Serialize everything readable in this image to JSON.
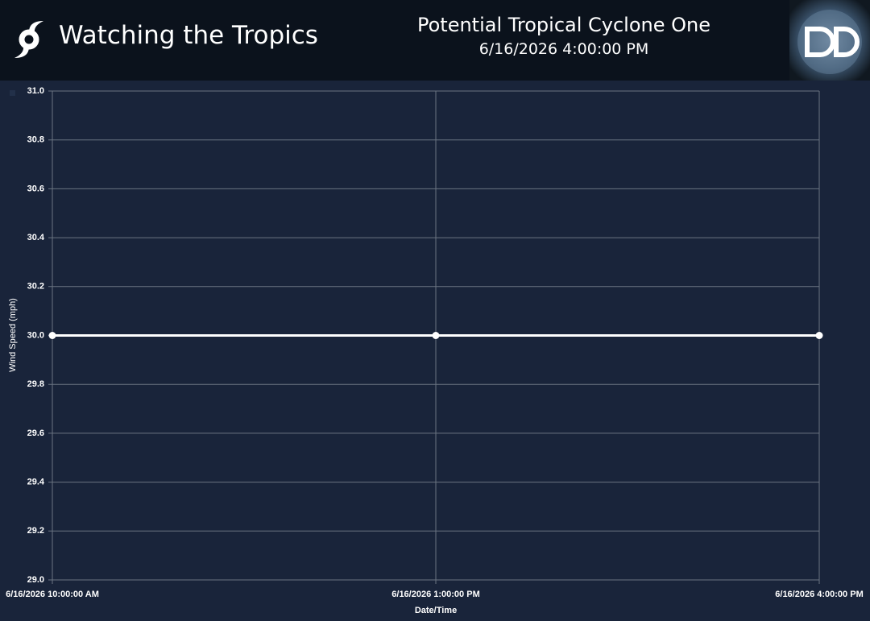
{
  "header": {
    "title": "Watching the Tropics",
    "storm": "Potential Tropical Cyclone One",
    "datetime": "6/16/2026 4:00:00 PM"
  },
  "chart_data": {
    "type": "line",
    "x_label": "Date/Time",
    "y_label": "Wind Speed (mph)",
    "categories": [
      "6/16/2026 10:00:00 AM",
      "6/16/2026 1:00:00 PM",
      "6/16/2026 4:00:00 PM"
    ],
    "values": [
      30,
      30,
      30
    ],
    "color": "#ffffff",
    "ylim": [
      29,
      31
    ],
    "yticks": [
      {
        "value": 29,
        "label": "29.0"
      },
      29.2,
      29.4,
      29.6,
      29.8,
      {
        "value": 30,
        "label": "30.0"
      },
      30.2,
      30.4,
      30.6,
      30.8,
      {
        "value": 31,
        "label": "31.0"
      }
    ],
    "grid": true
  }
}
